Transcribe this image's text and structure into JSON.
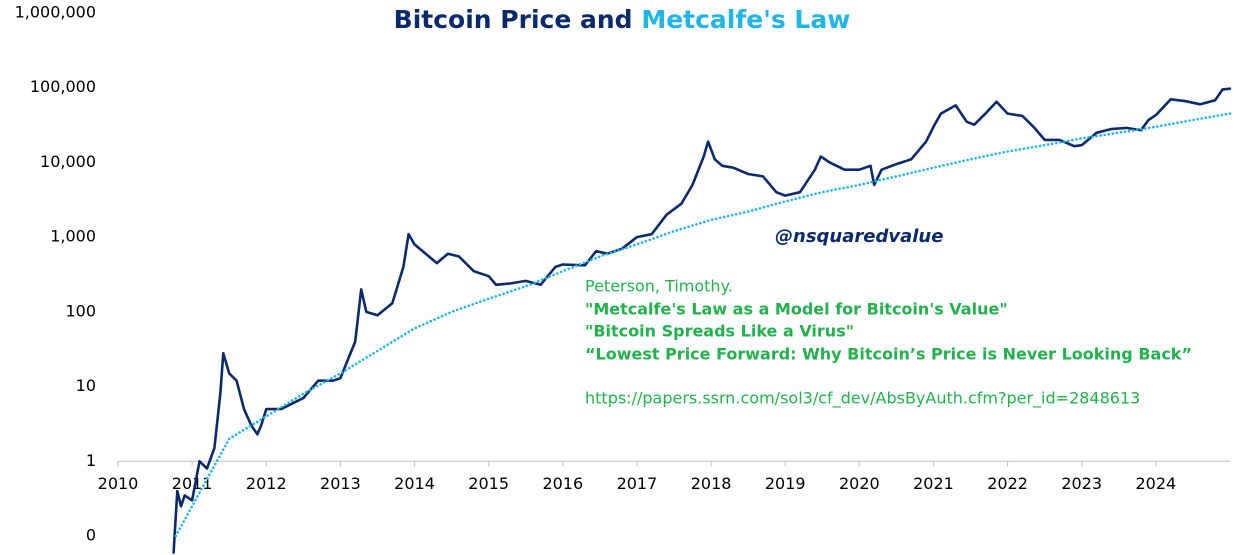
{
  "chart_data": {
    "type": "line",
    "title_and": "and",
    "log_y": true,
    "x_axis_at": 1,
    "xlim": [
      2010,
      2025
    ],
    "xticks": [
      2010,
      2011,
      2012,
      2013,
      2014,
      2015,
      2016,
      2017,
      2018,
      2019,
      2020,
      2021,
      2022,
      2023,
      2024
    ],
    "ylim": [
      0.1,
      1000000
    ],
    "yticks": [
      {
        "value": 0.1,
        "label": "0"
      },
      1,
      10,
      100,
      {
        "value": 1000,
        "label": "1,000"
      },
      {
        "value": 10000,
        "label": "10,000"
      },
      {
        "value": 100000,
        "label": "100,000"
      },
      {
        "value": 1000000,
        "label": "1,000,000"
      }
    ],
    "series": [
      {
        "name": "Bitcoin Price",
        "color": "#0c2a6b",
        "style": "solid",
        "x": [
          2010.75,
          2010.8,
          2010.85,
          2010.9,
          2011.0,
          2011.1,
          2011.2,
          2011.3,
          2011.38,
          2011.42,
          2011.5,
          2011.6,
          2011.7,
          2011.8,
          2011.88,
          2011.93,
          2012.0,
          2012.2,
          2012.5,
          2012.7,
          2012.9,
          2013.0,
          2013.2,
          2013.28,
          2013.35,
          2013.5,
          2013.7,
          2013.85,
          2013.92,
          2014.0,
          2014.15,
          2014.3,
          2014.45,
          2014.6,
          2014.8,
          2015.0,
          2015.1,
          2015.3,
          2015.5,
          2015.7,
          2015.9,
          2016.0,
          2016.3,
          2016.45,
          2016.6,
          2016.8,
          2017.0,
          2017.2,
          2017.4,
          2017.6,
          2017.75,
          2017.9,
          2017.96,
          2018.05,
          2018.15,
          2018.3,
          2018.5,
          2018.7,
          2018.88,
          2019.0,
          2019.2,
          2019.4,
          2019.48,
          2019.6,
          2019.8,
          2020.0,
          2020.15,
          2020.2,
          2020.3,
          2020.5,
          2020.7,
          2020.9,
          2021.0,
          2021.1,
          2021.3,
          2021.45,
          2021.55,
          2021.7,
          2021.85,
          2022.0,
          2022.2,
          2022.35,
          2022.5,
          2022.7,
          2022.9,
          2023.0,
          2023.2,
          2023.4,
          2023.6,
          2023.8,
          2023.9,
          2024.0,
          2024.2,
          2024.4,
          2024.6,
          2024.8,
          2024.9,
          2025.0
        ],
        "values": [
          0.06,
          0.4,
          0.25,
          0.35,
          0.3,
          1,
          0.8,
          1.5,
          8,
          28,
          15,
          12,
          5,
          3,
          2.3,
          3,
          5,
          5,
          7,
          12,
          12,
          13,
          40,
          200,
          100,
          90,
          130,
          400,
          1100,
          800,
          600,
          450,
          600,
          550,
          350,
          300,
          230,
          240,
          260,
          230,
          400,
          430,
          420,
          650,
          600,
          700,
          1000,
          1100,
          2000,
          2800,
          5000,
          12000,
          19000,
          11000,
          9000,
          8500,
          7000,
          6500,
          4000,
          3600,
          4000,
          8000,
          12000,
          10000,
          8000,
          8000,
          9000,
          5000,
          8000,
          9500,
          11000,
          19000,
          30000,
          45000,
          58000,
          35000,
          32000,
          45000,
          65000,
          45000,
          42000,
          30000,
          20000,
          20000,
          16500,
          17000,
          25000,
          28000,
          29000,
          27000,
          37000,
          43000,
          70000,
          66000,
          60000,
          68000,
          95000,
          97000
        ]
      },
      {
        "name": "Metcalfe's Law",
        "color": "#1fb5e6",
        "style": "dotted",
        "x": [
          2010.78,
          2011.0,
          2011.5,
          2012.0,
          2012.5,
          2013.0,
          2013.5,
          2014.0,
          2014.5,
          2015.0,
          2015.5,
          2016.0,
          2016.5,
          2017.0,
          2017.5,
          2018.0,
          2018.5,
          2019.0,
          2019.5,
          2020.0,
          2020.5,
          2021.0,
          2021.5,
          2022.0,
          2022.5,
          2023.0,
          2023.5,
          2024.0,
          2024.5,
          2025.0
        ],
        "values": [
          0.1,
          0.25,
          2,
          4,
          8,
          15,
          30,
          60,
          100,
          150,
          220,
          350,
          550,
          800,
          1200,
          1700,
          2200,
          3000,
          4000,
          5000,
          6500,
          8500,
          11000,
          14000,
          17000,
          21000,
          25000,
          30000,
          37000,
          45000
        ]
      }
    ],
    "annotations": [
      "@nsquaredvalue",
      "Peterson, Timothy.",
      "\"Metcalfe's Law as a Model for Bitcoin's Value\"",
      "\"Bitcoin Spreads Like a Virus\"",
      "“Lowest Price Forward: Why Bitcoin’s Price is Never Looking Back”",
      "https://papers.ssrn.com/sol3/cf_dev/AbsByAuth.cfm?per_id=2848613"
    ]
  }
}
